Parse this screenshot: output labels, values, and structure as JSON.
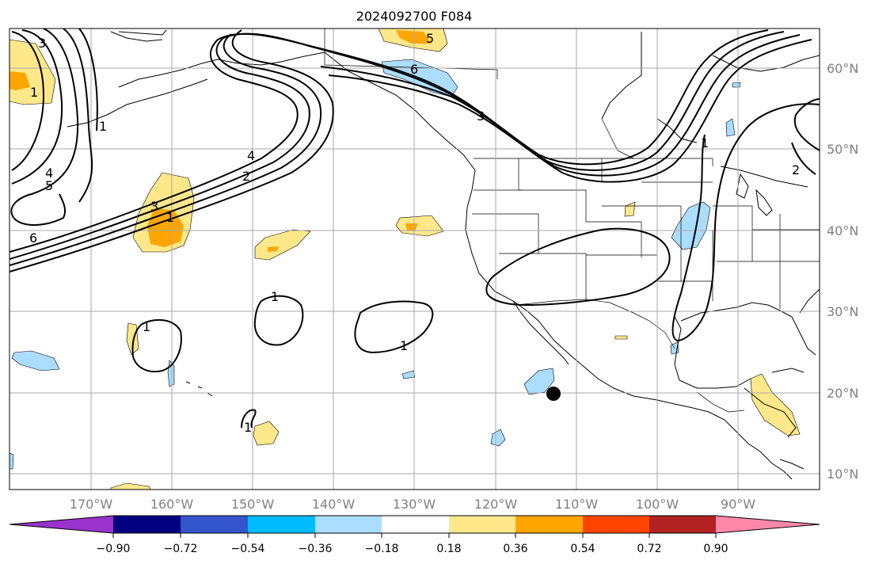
{
  "title": "2024092700 F084",
  "lon_labels": [
    "170°W",
    "160°W",
    "150°W",
    "140°W",
    "130°W",
    "120°W",
    "110°W",
    "100°W",
    "90°W"
  ],
  "lat_labels": [
    "60°N",
    "50°N",
    "40°N",
    "30°N",
    "20°N",
    "10°N"
  ],
  "colorbar": {
    "ticks": [
      "−0.90",
      "−0.72",
      "−0.54",
      "−0.36",
      "−0.18",
      "0.18",
      "0.36",
      "0.54",
      "0.72",
      "0.90"
    ],
    "colors": [
      "#9933cc",
      "#000080",
      "#3355cc",
      "#00bbff",
      "#aaddff",
      "#ffffff",
      "#ffe88a",
      "#ffa500",
      "#ff4400",
      "#b22222",
      "#ff88aa"
    ]
  },
  "contour_labels": [
    "3",
    "1",
    "4",
    "5",
    "6",
    "4",
    "2",
    "3",
    "1",
    "6",
    "5",
    "3",
    "1",
    "1",
    "1",
    "1",
    "1",
    "1",
    "2"
  ],
  "palette": {
    "pos_light": "#ffe88a",
    "pos_mid": "#ffa500",
    "neg_light": "#aaddff",
    "grid": "#aaaaaa",
    "axis_text": "#808080"
  }
}
